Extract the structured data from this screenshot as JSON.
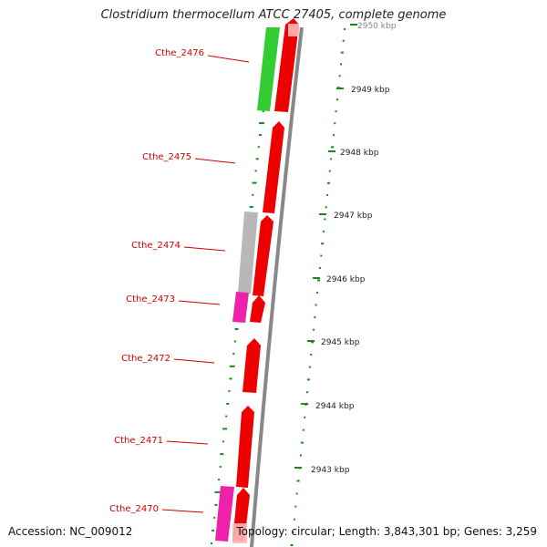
{
  "header": {
    "title": "Clostridium thermocellum ATCC 27405, complete genome"
  },
  "footer": {
    "accession": "Accession: NC_009012",
    "topology": "Topology: circular; Length: 3,843,301 bp; Genes: 3,259"
  },
  "map": {
    "ticks": [
      {
        "label": "2950 kbp",
        "kbp": 2950
      },
      {
        "label": "2949 kbp",
        "kbp": 2949
      },
      {
        "label": "2948 kbp",
        "kbp": 2948
      },
      {
        "label": "2947 kbp",
        "kbp": 2947
      },
      {
        "label": "2946 kbp",
        "kbp": 2946
      },
      {
        "label": "2945 kbp",
        "kbp": 2945
      },
      {
        "label": "2944 kbp",
        "kbp": 2944
      },
      {
        "label": "2943 kbp",
        "kbp": 2943
      }
    ],
    "gene_labels": [
      {
        "label": "Cthe_2476"
      },
      {
        "label": "Cthe_2475"
      },
      {
        "label": "Cthe_2474"
      },
      {
        "label": "Cthe_2473"
      },
      {
        "label": "Cthe_2472"
      },
      {
        "label": "Cthe_2471"
      },
      {
        "label": "Cthe_2470"
      }
    ],
    "colors": {
      "cds": "#ee0000",
      "cog_green": "#33cc33",
      "cog_grey": "#b8b8b8",
      "cog_pink": "#ee22aa",
      "backbone": "#888888",
      "gc_dots": "#1a8a1a",
      "gene_label": "#cc0000",
      "tick_label": "#222222"
    }
  }
}
